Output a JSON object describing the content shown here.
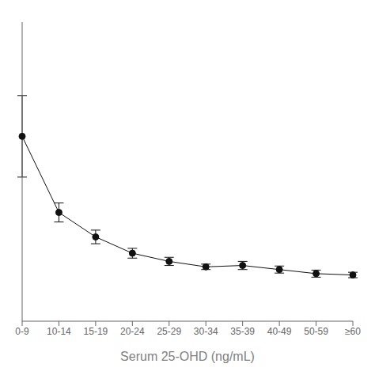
{
  "chart_data": {
    "type": "line",
    "xlabel": "Serum 25-OHD (ng/mL)",
    "categories": [
      "0-9",
      "10-14",
      "15-19",
      "20-24",
      "25-29",
      "30-34",
      "35-39",
      "40-49",
      "50-59",
      "≥60"
    ],
    "values": [
      68,
      40,
      31,
      25,
      22,
      20,
      20.5,
      19,
      17.5,
      17.0
    ],
    "y_err": [
      15,
      3.5,
      2.5,
      1.8,
      1.5,
      1.0,
      1.5,
      1.3,
      1.3,
      1.0
    ],
    "color": "#111111",
    "marker": "circle",
    "line_style": "solid",
    "ylim": [
      0,
      110
    ],
    "tick_labels": "x",
    "grid": false
  }
}
